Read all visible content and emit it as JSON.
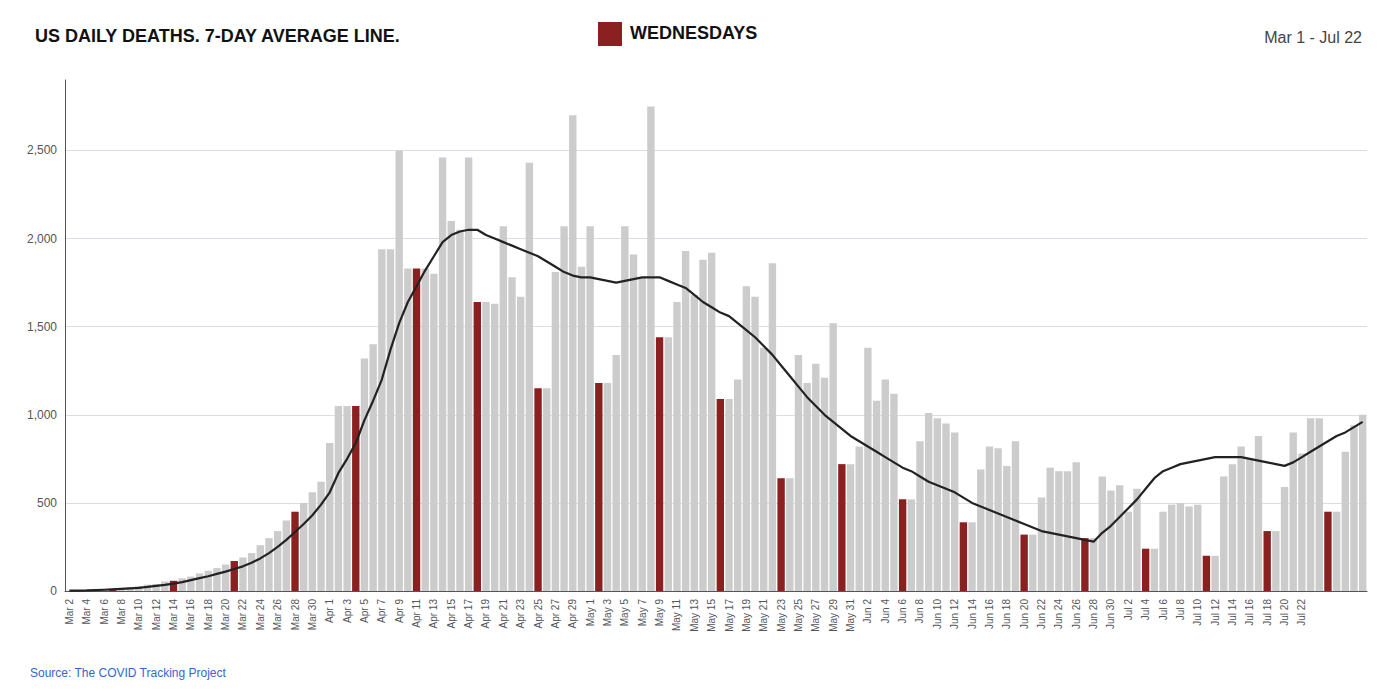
{
  "chart_data": {
    "type": "bar",
    "title": "US DAILY DEATHS. 7-DAY AVERAGE LINE.",
    "subtitle": "Mar 1 - Jul 22",
    "annotations": [
      {
        "text": "WEDNESDAYS",
        "color": "#8b2020",
        "marker": "square"
      },
      {
        "text": "Source: The COVID Tracking Project",
        "color": "#3366cc"
      }
    ],
    "categories": [
      "Mar 2",
      null,
      "Mar 4",
      null,
      "Mar 6",
      null,
      "Mar 8",
      null,
      "Mar 10",
      null,
      "Mar 12",
      null,
      "Mar 14",
      null,
      "Mar 16",
      null,
      "Mar 18",
      null,
      "Mar 20",
      null,
      "Mar 22",
      null,
      "Mar 24",
      null,
      "Mar 26",
      null,
      "Mar 28",
      null,
      "Mar 30",
      null,
      "Apr 1",
      null,
      "Apr 3",
      null,
      "Apr 5",
      null,
      "Apr 7",
      null,
      "Apr 9",
      null,
      "Apr 11",
      null,
      "Apr 13",
      null,
      "Apr 15",
      null,
      "Apr 17",
      null,
      "Apr 19",
      null,
      "Apr 21",
      null,
      "Apr 23",
      null,
      "Apr 25",
      null,
      "Apr 27",
      null,
      "Apr 29",
      null,
      "May 1",
      null,
      "May 3",
      null,
      "May 5",
      null,
      "May 7",
      null,
      "May 9",
      null,
      "May 11",
      null,
      "May 13",
      null,
      "May 15",
      null,
      "May 17",
      null,
      "May 19",
      null,
      "May 21",
      null,
      "May 23",
      null,
      "May 25",
      null,
      "May 27",
      null,
      "May 29",
      null,
      "May 31",
      null,
      "Jun 2",
      null,
      "Jun 4",
      null,
      "Jun 6",
      null,
      "Jun 8",
      null,
      "Jun 10",
      null,
      "Jun 12",
      null,
      "Jun 14",
      null,
      "Jun 16",
      null,
      "Jun 18",
      null,
      "Jun 20",
      null,
      "Jun 22",
      null,
      "Jun 24",
      null,
      "Jun 26",
      null,
      "Jun 28",
      null,
      "Jun 30",
      null,
      "Jul 2",
      null,
      "Jul 4",
      null,
      "Jul 6",
      null,
      "Jul 8",
      null,
      "Jul 10",
      null,
      "Jul 12",
      null,
      "Jul 14",
      null,
      "Jul 16",
      null,
      "Jul 18",
      null,
      "Jul 20",
      null,
      "Jul 22",
      null,
      null,
      null,
      null,
      null,
      null,
      null
    ],
    "series": [
      {
        "type": "bar",
        "values": [
          2,
          3,
          4,
          6,
          10,
          14,
          18,
          23,
          28,
          36,
          40,
          54,
          58,
          72,
          82,
          100,
          115,
          130,
          150,
          170,
          190,
          215,
          260,
          300,
          340,
          400,
          450,
          500,
          560,
          620,
          840,
          1050,
          1050,
          1050,
          1320,
          1400,
          1940,
          1940,
          2500,
          1830,
          1830,
          1830,
          1800,
          2460,
          2100,
          2050,
          2460,
          1640,
          1640,
          1630,
          2070,
          1780,
          1670,
          2430,
          1150,
          1150,
          1810,
          2070,
          2700,
          1840,
          2070,
          1180,
          1180,
          1340,
          2070,
          1910,
          1780,
          2750,
          1440,
          1440,
          1640,
          1930,
          1680,
          1880,
          1920,
          1090,
          1090,
          1200,
          1730,
          1670,
          1380,
          1860,
          640,
          640,
          1340,
          1180,
          1290,
          1210,
          1520,
          720,
          720,
          820,
          1380,
          1080,
          1200,
          1120,
          520,
          520,
          850,
          1010,
          980,
          950,
          900,
          390,
          390,
          690,
          820,
          810,
          710,
          850,
          320,
          320,
          530,
          700,
          680,
          680,
          730,
          300,
          300,
          650,
          570,
          600,
          450,
          580,
          240,
          240,
          450,
          490,
          500,
          480,
          490,
          200,
          200,
          650,
          720,
          820,
          750,
          880,
          340,
          340,
          590,
          900,
          780,
          980,
          980,
          450,
          450,
          790,
          940,
          1000
        ],
        "colors": [
          "#cccccc",
          "#cccccc",
          "#cccccc",
          "#cccccc",
          "#cccccc",
          "#8b2020",
          "#cccccc",
          "#cccccc",
          "#cccccc",
          "#cccccc",
          "#cccccc",
          "#cccccc",
          "#8b2020",
          "#cccccc",
          "#cccccc",
          "#cccccc",
          "#cccccc",
          "#cccccc",
          "#cccccc",
          "#8b2020",
          "#cccccc",
          "#cccccc",
          "#cccccc",
          "#cccccc",
          "#cccccc",
          "#cccccc",
          "#8b2020",
          "#cccccc",
          "#cccccc",
          "#cccccc",
          "#cccccc",
          "#cccccc",
          "#cccccc",
          "#8b2020",
          "#cccccc",
          "#cccccc",
          "#cccccc",
          "#cccccc",
          "#cccccc",
          "#cccccc",
          "#8b2020",
          "#cccccc",
          "#cccccc",
          "#cccccc",
          "#cccccc",
          "#cccccc",
          "#cccccc",
          "#8b2020",
          "#cccccc",
          "#cccccc",
          "#cccccc",
          "#cccccc",
          "#cccccc",
          "#cccccc",
          "#8b2020",
          "#cccccc",
          "#cccccc",
          "#cccccc",
          "#cccccc",
          "#cccccc",
          "#cccccc",
          "#8b2020",
          "#cccccc",
          "#cccccc",
          "#cccccc",
          "#cccccc",
          "#cccccc",
          "#cccccc",
          "#8b2020",
          "#cccccc",
          "#cccccc",
          "#cccccc",
          "#cccccc",
          "#cccccc",
          "#cccccc",
          "#8b2020",
          "#cccccc",
          "#cccccc",
          "#cccccc",
          "#cccccc",
          "#cccccc",
          "#cccccc",
          "#8b2020",
          "#cccccc",
          "#cccccc",
          "#cccccc",
          "#cccccc",
          "#cccccc",
          "#cccccc",
          "#8b2020",
          "#cccccc",
          "#cccccc",
          "#cccccc",
          "#cccccc",
          "#cccccc",
          "#cccccc",
          "#8b2020",
          "#cccccc",
          "#cccccc",
          "#cccccc",
          "#cccccc",
          "#cccccc",
          "#cccccc",
          "#8b2020",
          "#cccccc",
          "#cccccc",
          "#cccccc",
          "#cccccc",
          "#cccccc",
          "#cccccc",
          "#8b2020",
          "#cccccc",
          "#cccccc",
          "#cccccc",
          "#cccccc",
          "#cccccc",
          "#cccccc",
          "#8b2020",
          "#cccccc",
          "#cccccc",
          "#cccccc",
          "#cccccc",
          "#cccccc",
          "#cccccc",
          "#8b2020",
          "#cccccc",
          "#cccccc",
          "#cccccc",
          "#cccccc",
          "#cccccc",
          "#cccccc",
          "#8b2020",
          "#cccccc",
          "#cccccc",
          "#cccccc",
          "#cccccc",
          "#cccccc",
          "#cccccc",
          "#8b2020",
          "#cccccc",
          "#cccccc",
          "#cccccc",
          "#cccccc",
          "#cccccc",
          "#cccccc",
          "#8b2020",
          "#cccccc",
          "#cccccc",
          "#cccccc",
          "#cccccc"
        ]
      },
      {
        "type": "line",
        "color": "#222222",
        "values": [
          2,
          2,
          3,
          5,
          7,
          9,
          12,
          15,
          18,
          23,
          29,
          35,
          42,
          50,
          62,
          73,
          84,
          97,
          110,
          125,
          140,
          160,
          185,
          215,
          250,
          290,
          335,
          380,
          430,
          490,
          560,
          670,
          750,
          840,
          970,
          1080,
          1200,
          1370,
          1520,
          1640,
          1730,
          1820,
          1900,
          1980,
          2020,
          2040,
          2050,
          2050,
          2020,
          2000,
          1980,
          1960,
          1940,
          1920,
          1900,
          1870,
          1840,
          1810,
          1790,
          1780,
          1780,
          1770,
          1760,
          1750,
          1760,
          1770,
          1780,
          1780,
          1780,
          1760,
          1740,
          1720,
          1680,
          1640,
          1610,
          1580,
          1560,
          1520,
          1480,
          1440,
          1390,
          1340,
          1280,
          1220,
          1160,
          1100,
          1050,
          1000,
          960,
          920,
          880,
          850,
          820,
          790,
          760,
          730,
          700,
          680,
          650,
          620,
          600,
          580,
          560,
          530,
          500,
          480,
          460,
          440,
          420,
          400,
          380,
          360,
          340,
          330,
          320,
          310,
          300,
          290,
          280,
          330,
          370,
          420,
          470,
          520,
          580,
          640,
          680,
          700,
          720,
          730,
          740,
          750,
          760,
          760,
          760,
          760,
          750,
          740,
          730,
          720,
          710,
          730,
          760,
          790,
          820,
          850,
          880,
          900,
          930,
          960
        ]
      }
    ],
    "ylim": [
      0,
      2900
    ],
    "yticks": [
      0,
      500,
      {
        "value": 1000,
        "label": "1,000"
      },
      {
        "value": 1500,
        "label": "1,500"
      },
      {
        "value": 2000,
        "label": "2,000"
      },
      {
        "value": 2500,
        "label": "2,500"
      }
    ],
    "grid": true
  }
}
